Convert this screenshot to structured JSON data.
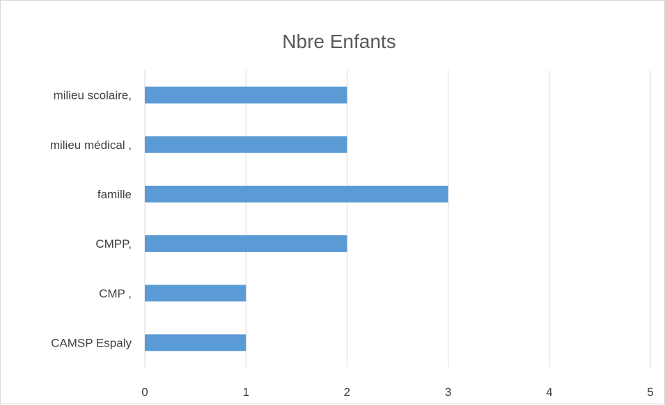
{
  "chart_data": {
    "type": "bar",
    "orientation": "horizontal",
    "title": "Nbre Enfants",
    "categories": [
      "CAMSP Espaly",
      "CMP ,",
      "CMPP,",
      "famille",
      "milieu médical ,",
      "milieu scolaire,"
    ],
    "values": [
      1,
      1,
      2,
      3,
      2,
      2
    ],
    "xlim": [
      0,
      5
    ],
    "xticks": [
      "0",
      "1",
      "2",
      "3",
      "4",
      "5"
    ],
    "grid": true,
    "legend": "none",
    "bar_color": "#5b9bd5"
  }
}
